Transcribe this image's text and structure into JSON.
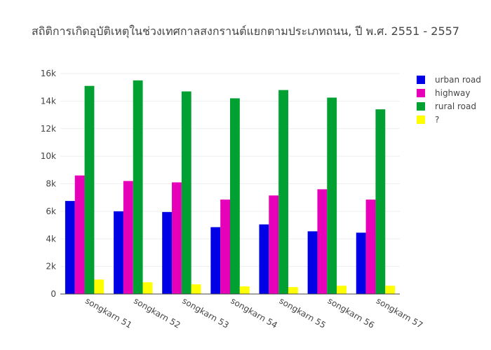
{
  "chart_data": {
    "type": "bar",
    "title": "สถิติการเกิดอุบัติเหตุในช่วงเทศกาลสงกรานต์แยกตามประเภทถนน, ปี พ.ศ. 2551 - 2557",
    "xlabel": "",
    "ylabel": "",
    "categories": [
      "songkarn 51",
      "songkarn 52",
      "songkarn 53",
      "songkarn 54",
      "songkarn 55",
      "songkarn 56",
      "songkarn 57"
    ],
    "ylim": [
      0,
      16000
    ],
    "yticks": [
      0,
      2000,
      4000,
      6000,
      8000,
      10000,
      12000,
      14000,
      16000
    ],
    "ytick_labels": [
      "0",
      "2k",
      "4k",
      "6k",
      "8k",
      "10k",
      "12k",
      "14k",
      "16k"
    ],
    "grid": true,
    "legend_position": "top-right",
    "series": [
      {
        "name": "urban road",
        "color": "#0000e6",
        "values": [
          6750,
          6000,
          5950,
          4850,
          5050,
          4550,
          4450
        ]
      },
      {
        "name": "highway",
        "color": "#e600b8",
        "values": [
          8600,
          8200,
          8100,
          6850,
          7150,
          7600,
          6850
        ]
      },
      {
        "name": "rural road",
        "color": "#00a032",
        "values": [
          15100,
          15500,
          14700,
          14200,
          14800,
          14250,
          13400
        ]
      },
      {
        "name": "?",
        "color": "#ffff00",
        "values": [
          1050,
          850,
          700,
          550,
          500,
          600,
          600
        ]
      }
    ]
  }
}
